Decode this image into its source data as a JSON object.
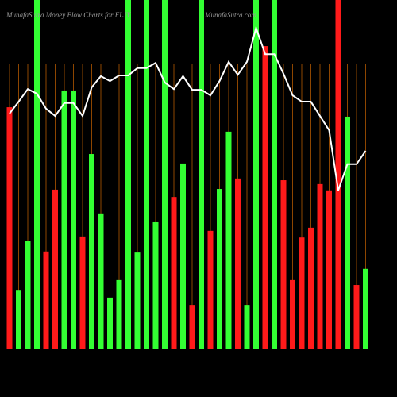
{
  "chart_data": {
    "type": "bar",
    "title": "MunafaSutra  Money Flow  Charts for FLJY",
    "subtitle": "MunafaSutra.com",
    "values": [
      69.3,
      17,
      31.1,
      100,
      28,
      45.7,
      74.1,
      74.1,
      32.3,
      55.9,
      38.9,
      14.8,
      19.8,
      100,
      27.7,
      100,
      36.6,
      100,
      43.6,
      53.2,
      12.7,
      100,
      33.9,
      45.9,
      62.3,
      48.9,
      12.7,
      100,
      86.8,
      100,
      48.4,
      19.8,
      32,
      34.8,
      47.3,
      45.5,
      100,
      66.6,
      18.4,
      23
    ],
    "colors": [
      "#ff1a1a",
      "#33ff33",
      "#33ff33",
      "#33ff33",
      "#ff1a1a",
      "#ff1a1a",
      "#33ff33",
      "#33ff33",
      "#ff1a1a",
      "#33ff33",
      "#33ff33",
      "#33ff33",
      "#33ff33",
      "#33ff33",
      "#33ff33",
      "#33ff33",
      "#33ff33",
      "#33ff33",
      "#ff1a1a",
      "#33ff33",
      "#ff1a1a",
      "#33ff33",
      "#ff1a1a",
      "#33ff33",
      "#33ff33",
      "#ff1a1a",
      "#33ff33",
      "#33ff33",
      "#ff1a1a",
      "#33ff33",
      "#ff1a1a",
      "#ff1a1a",
      "#ff1a1a",
      "#ff1a1a",
      "#ff1a1a",
      "#ff1a1a",
      "#ff1a1a",
      "#33ff33",
      "#ff1a1a",
      "#33ff33"
    ],
    "line_values": [
      67.5,
      70.9,
      74.5,
      73.2,
      68.9,
      66.8,
      70.5,
      70.5,
      66.8,
      75,
      78.2,
      76.8,
      78.4,
      78.4,
      80.5,
      80.5,
      82,
      76.4,
      74.5,
      78.2,
      74.3,
      74.3,
      72.7,
      76.8,
      82.3,
      78.6,
      82.3,
      92,
      84.5,
      84.5,
      78.9,
      72.7,
      70.9,
      70.9,
      66.8,
      62.7,
      45.5,
      53,
      53,
      56.8
    ],
    "line_color": "#ffffff",
    "guide_color": "#b35900",
    "ylim": [
      0,
      100
    ]
  }
}
